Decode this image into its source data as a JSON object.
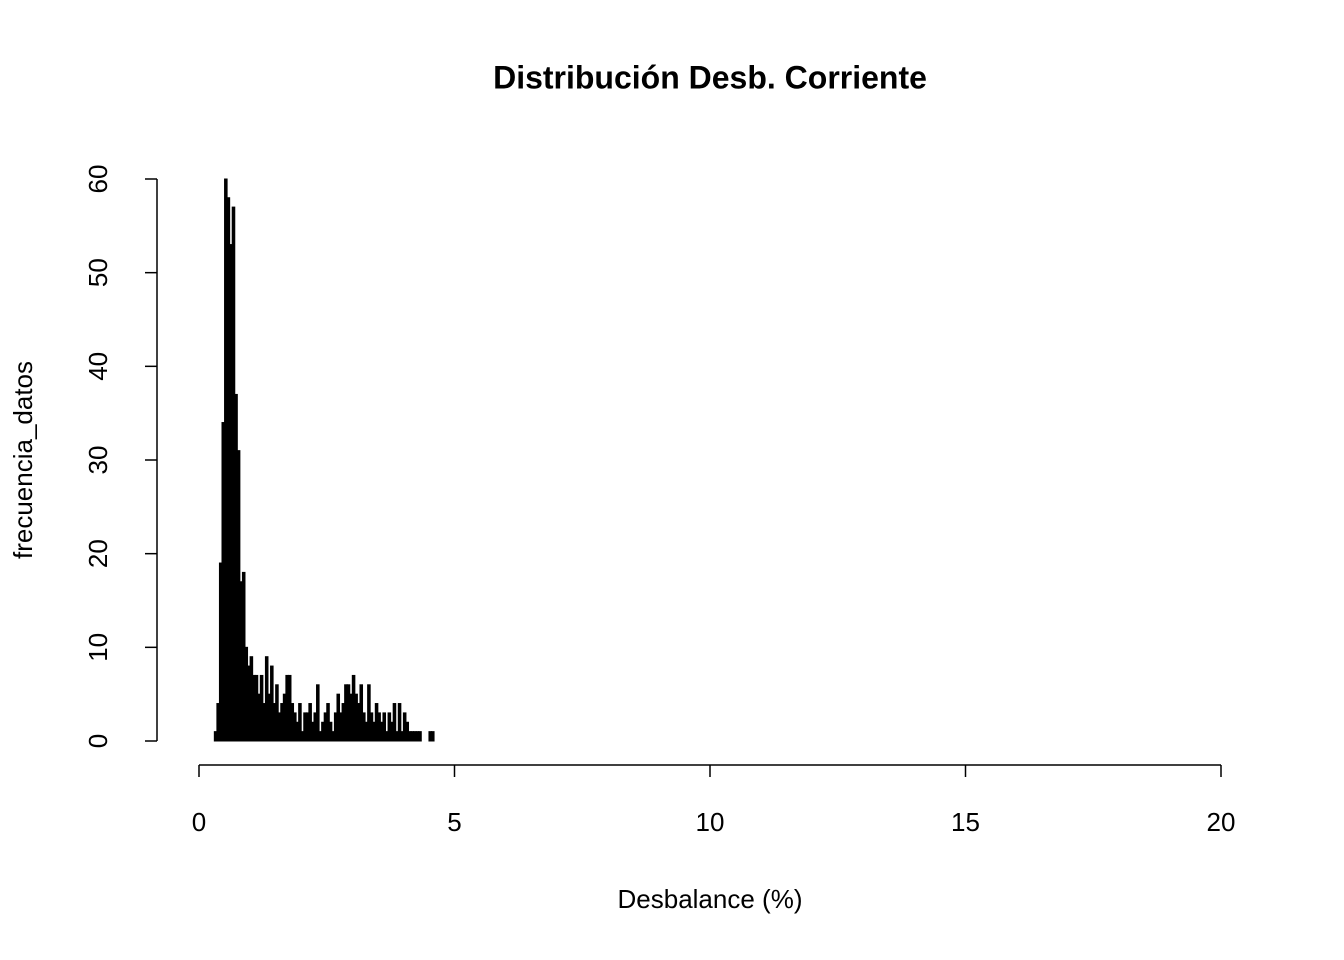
{
  "chart_data": {
    "type": "histogram",
    "title": "Distribución Desb. Corriente",
    "x_label": "Desbalance (%)",
    "y_label": "frecuencia_datos",
    "bins": [
      0.3,
      0.35,
      0.4,
      0.45,
      0.5,
      0.55,
      0.6,
      0.65,
      0.7,
      0.75,
      0.8,
      0.85,
      0.9,
      0.95,
      1.0,
      1.05,
      1.1,
      1.15,
      1.2,
      1.25,
      1.3,
      1.35,
      1.4,
      1.45,
      1.5,
      1.55,
      1.6,
      1.65,
      1.7,
      1.75,
      1.8,
      1.85,
      1.9,
      1.95,
      2.0,
      2.05,
      2.1,
      2.15,
      2.2,
      2.25,
      2.3,
      2.35,
      2.4,
      2.45,
      2.5,
      2.55,
      2.6,
      2.65,
      2.7,
      2.75,
      2.8,
      2.85,
      2.9,
      2.95,
      3.0,
      3.05,
      3.1,
      3.15,
      3.2,
      3.25,
      3.3,
      3.35,
      3.4,
      3.45,
      3.5,
      3.55,
      3.6,
      3.65,
      3.7,
      3.75,
      3.8,
      3.85,
      3.9,
      3.95,
      4.0,
      4.05,
      4.1,
      4.15,
      4.2,
      4.25,
      4.3,
      4.35,
      4.4,
      4.45,
      4.5,
      4.55,
      4.6
    ],
    "values": [
      1,
      4,
      19,
      34,
      60,
      58,
      53,
      57,
      37,
      31,
      17,
      18,
      10,
      8,
      9,
      7,
      7,
      5,
      7,
      4,
      9,
      5,
      8,
      4,
      6,
      3,
      4,
      5,
      7,
      7,
      4,
      3,
      2,
      4,
      1,
      3,
      3,
      4,
      2,
      3,
      6,
      1,
      2,
      3,
      4,
      2,
      1,
      3,
      5,
      3,
      4,
      6,
      6,
      5,
      7,
      5,
      4,
      6,
      3,
      2,
      6,
      3,
      2,
      4,
      3,
      2,
      3,
      1,
      3,
      2,
      4,
      1,
      4,
      1,
      3,
      2,
      1,
      1,
      1,
      1,
      1,
      0,
      0,
      0,
      1,
      1
    ],
    "color": "#000000",
    "xlim": [
      0,
      20
    ],
    "xticks": [
      0,
      5,
      10,
      15,
      20
    ],
    "ylim": [
      0,
      60
    ],
    "yticks": [
      0,
      10,
      20,
      30,
      40,
      50,
      60
    ]
  }
}
